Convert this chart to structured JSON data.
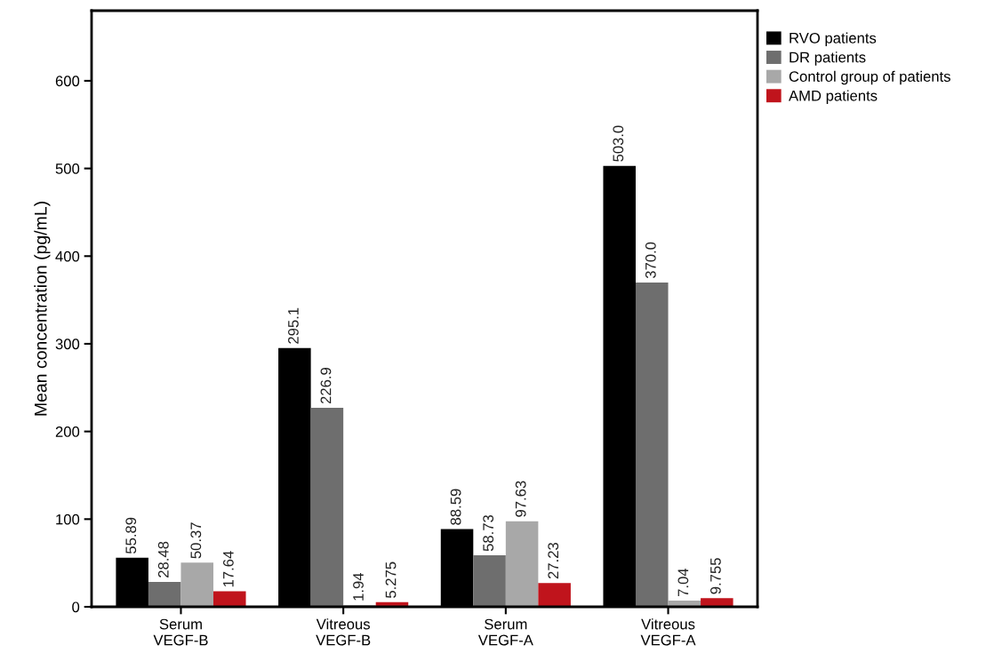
{
  "chart_data": {
    "type": "bar",
    "ylabel": "Mean concentration (pg/mL)",
    "categories": [
      "Serum\nVEGF-B",
      "Vitreous\nVEGF-B",
      "Serum\nVEGF-A",
      "Vitreous\nVEGF-A"
    ],
    "series": [
      {
        "name": "RVO patients",
        "color": "#000000",
        "values": [
          55.89,
          295.1,
          88.59,
          503.0
        ],
        "value_labels": [
          "55.89",
          "295.1",
          "88.59",
          "503.0"
        ]
      },
      {
        "name": "DR patients",
        "color": "#6e6e6e",
        "values": [
          28.48,
          226.9,
          58.73,
          370.0
        ],
        "value_labels": [
          "28.48",
          "226.9",
          "58.73",
          "370.0"
        ]
      },
      {
        "name": "Control group of patients",
        "color": "#a8a8a8",
        "values": [
          50.37,
          1.94,
          97.63,
          7.04
        ],
        "value_labels": [
          "50.37",
          "1.94",
          "97.63",
          "7.04"
        ]
      },
      {
        "name": "AMD patients",
        "color": "#c0141c",
        "values": [
          17.64,
          5.275,
          27.23,
          9.755
        ],
        "value_labels": [
          "17.64",
          "5.275",
          "27.23",
          "9.755"
        ]
      }
    ],
    "ylim": [
      0,
      680
    ],
    "yticks": [
      0,
      100,
      200,
      300,
      400,
      500,
      600
    ],
    "grid": false,
    "legend": "top right"
  }
}
